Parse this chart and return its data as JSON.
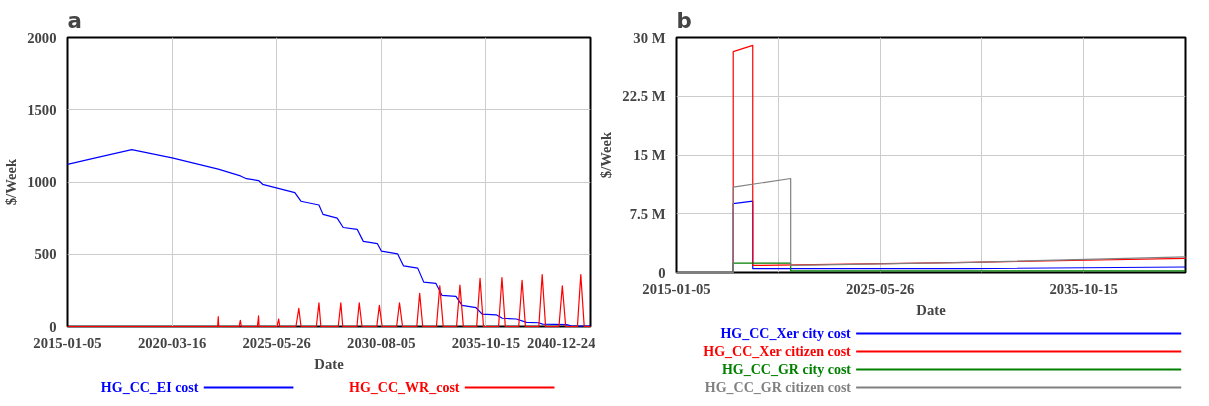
{
  "chart_data": [
    {
      "type": "line",
      "title": "a",
      "xlabel": "Date",
      "ylabel": "$/Week",
      "xlim": [
        "2015-01-05",
        "2040-12-24"
      ],
      "xticks": [
        "2015-01-05",
        "2020-03-16",
        "2025-05-26",
        "2030-08-05",
        "2035-10-15",
        "2040-12-24"
      ],
      "ylim": [
        0,
        2000
      ],
      "yticks": [
        0,
        500,
        1000,
        1500,
        2000
      ],
      "grid": true,
      "legend": "bottom",
      "series": [
        {
          "name": "HG_CC_EI cost",
          "color": "#0000ff",
          "x": [
            "2015-01-05",
            "2016-05-27",
            "2018-03-15",
            "2020-03-16",
            "2022-07-01",
            "2023-08-08",
            "2023-11-25",
            "2024-07-01",
            "2024-09-13",
            "2026-04-20",
            "2026-08-08",
            "2027-07-01",
            "2027-09-13",
            "2028-05-27",
            "2028-09-13",
            "2029-05-27",
            "2029-09-13",
            "2030-05-27",
            "2030-08-08",
            "2031-05-27",
            "2031-09-13",
            "2032-05-27",
            "2032-09-13",
            "2033-04-20",
            "2033-08-08",
            "2034-04-20",
            "2034-08-08",
            "2035-04-20",
            "2035-08-08",
            "2036-04-20",
            "2036-08-08",
            "2037-04-20",
            "2037-10-20",
            "2038-05-27",
            "2038-08-08",
            "2039-10-20",
            "2040-01-05",
            "2040-12-24"
          ],
          "values": [
            1122,
            1167,
            1224,
            1167,
            1089,
            1042,
            1023,
            1010,
            984,
            927,
            867,
            841,
            776,
            750,
            685,
            672,
            589,
            573,
            521,
            503,
            419,
            404,
            307,
            299,
            216,
            208,
            146,
            130,
            86,
            81,
            57,
            52,
            29,
            26,
            16,
            13,
            5,
            3
          ]
        },
        {
          "name": "HG_CC_WR_cost",
          "color": "#ff0000",
          "x": [
            "2015-01-05",
            "2022-06-20",
            "2022-07-01",
            "2022-07-10",
            "2023-07-15",
            "2023-08-05",
            "2023-08-25",
            "2024-06-10",
            "2024-07-01",
            "2024-07-10",
            "2025-06-01",
            "2025-07-01",
            "2025-07-20",
            "2026-05-10",
            "2026-07-01",
            "2026-08-10",
            "2027-05-15",
            "2027-07-01",
            "2027-08-05",
            "2028-06-15",
            "2028-08-01",
            "2028-09-05",
            "2029-05-20",
            "2029-07-01",
            "2029-08-20",
            "2030-05-15",
            "2030-07-01",
            "2030-08-20",
            "2031-05-10",
            "2031-07-01",
            "2031-08-25",
            "2032-05-10",
            "2032-07-01",
            "2032-08-25",
            "2033-05-01",
            "2033-07-01",
            "2033-09-01",
            "2034-05-01",
            "2034-07-01",
            "2034-09-01",
            "2035-05-01",
            "2035-07-01",
            "2035-09-01",
            "2036-06-01",
            "2036-08-01",
            "2036-10-01",
            "2037-06-01",
            "2037-08-01",
            "2037-10-01",
            "2038-06-01",
            "2038-08-01",
            "2038-10-01",
            "2039-06-01",
            "2039-08-01",
            "2039-10-01",
            "2040-05-01",
            "2040-07-01",
            "2040-09-01",
            "2040-12-24"
          ],
          "values": [
            0,
            0,
            68,
            0,
            0,
            42,
            0,
            0,
            73,
            0,
            0,
            52,
            0,
            0,
            125,
            0,
            0,
            164,
            0,
            0,
            164,
            0,
            0,
            164,
            0,
            0,
            146,
            0,
            0,
            164,
            0,
            0,
            229,
            0,
            0,
            281,
            0,
            0,
            286,
            0,
            0,
            333,
            0,
            0,
            339,
            0,
            0,
            320,
            0,
            0,
            359,
            0,
            0,
            281,
            0,
            0,
            359,
            0,
            0
          ]
        }
      ]
    },
    {
      "type": "line",
      "title": "b",
      "xlabel": "Date",
      "ylabel": "$/Week",
      "xlim": [
        "2015-01-05",
        "2040-12-24"
      ],
      "xticks": [
        "2015-01-05",
        {
          "value": "2020-03-16",
          "label": null
        },
        "2025-05-26",
        {
          "value": "2030-08-05",
          "label": null
        },
        "2035-10-15"
      ],
      "ylim": [
        0,
        30000000
      ],
      "yticks": [
        {
          "value": 0,
          "label": "0"
        },
        {
          "value": 7500000,
          "label": "7.5 M"
        },
        {
          "value": 15000000,
          "label": "15 M"
        },
        {
          "value": 22500000,
          "label": "22.5 M"
        },
        {
          "value": 30000000,
          "label": "30 M"
        }
      ],
      "grid": true,
      "legend": "bottom",
      "series": [
        {
          "name": "HG_CC_Xer city cost",
          "color": "#0000ff",
          "x": [
            "2015-01-05",
            "2017-11-27",
            "2017-11-27",
            "2018-11-26",
            "2018-11-26",
            "2030-01-01",
            "2040-12-24"
          ],
          "values": [
            0,
            0,
            8800000,
            9100000,
            500000,
            500000,
            700000
          ]
        },
        {
          "name": "HG_CC_Xer citizen cost",
          "color": "#ff0000",
          "x": [
            "2015-01-05",
            "2017-11-27",
            "2017-11-27",
            "2018-11-26",
            "2018-11-26",
            "2030-01-01",
            "2040-12-24"
          ],
          "values": [
            0,
            0,
            28200000,
            29000000,
            900000,
            1300000,
            1800000
          ]
        },
        {
          "name": "HG_CC_GR city cost",
          "color": "#008000",
          "x": [
            "2015-01-05",
            "2017-11-27",
            "2017-11-27",
            "2020-11-02",
            "2020-11-02",
            "2040-12-24"
          ],
          "values": [
            0,
            0,
            1200000,
            1200000,
            200000,
            200000
          ]
        },
        {
          "name": "HG_CC_GR citizen cost",
          "color": "#808080",
          "x": [
            "2015-01-05",
            "2017-11-27",
            "2017-11-27",
            "2020-11-02",
            "2020-11-02",
            "2030-01-01",
            "2040-12-24"
          ],
          "values": [
            0,
            0,
            10900000,
            12000000,
            900000,
            1300000,
            2000000
          ]
        }
      ]
    }
  ]
}
